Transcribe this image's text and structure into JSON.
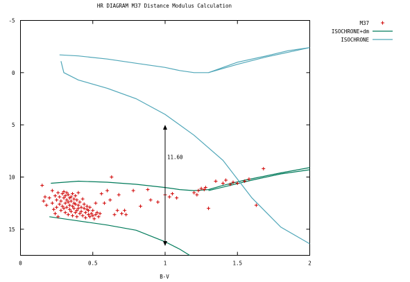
{
  "chart_data": {
    "type": "scatter",
    "title": "HR DIAGRAM M37 Distance Modulus Calculation",
    "xlabel": "B-V",
    "ylabel": "",
    "xlim": [
      0,
      2
    ],
    "ylim": [
      17.5,
      -5
    ],
    "y_inverted": true,
    "grid": false,
    "legend_position": "outside-right",
    "x_ticks": [
      "0",
      "0.5",
      "1",
      "1.5",
      "2"
    ],
    "x_tick_values": [
      0,
      0.5,
      1,
      1.5,
      2
    ],
    "y_ticks": [
      "-5",
      "0",
      "5",
      "10",
      "15"
    ],
    "y_tick_values": [
      -5,
      0,
      5,
      10,
      15
    ],
    "annotation": {
      "text": "11.60",
      "arrow_x": 1.0,
      "arrow_y_from": 5.0,
      "arrow_y_to": 16.6
    },
    "series": [
      {
        "name": "M37",
        "kind": "points",
        "marker": "plus",
        "color": "#d00000",
        "points": [
          [
            0.15,
            10.8
          ],
          [
            0.17,
            11.9
          ],
          [
            0.16,
            12.3
          ],
          [
            0.18,
            12.7
          ],
          [
            0.2,
            12.0
          ],
          [
            0.22,
            11.3
          ],
          [
            0.22,
            12.5
          ],
          [
            0.23,
            13.1
          ],
          [
            0.24,
            13.5
          ],
          [
            0.24,
            11.8
          ],
          [
            0.25,
            12.2
          ],
          [
            0.25,
            12.9
          ],
          [
            0.26,
            11.5
          ],
          [
            0.26,
            13.8
          ],
          [
            0.27,
            12.6
          ],
          [
            0.27,
            11.9
          ],
          [
            0.28,
            12.3
          ],
          [
            0.28,
            13.2
          ],
          [
            0.29,
            11.6
          ],
          [
            0.29,
            12.8
          ],
          [
            0.3,
            12.0
          ],
          [
            0.3,
            11.4
          ],
          [
            0.3,
            13.0
          ],
          [
            0.31,
            12.5
          ],
          [
            0.31,
            11.8
          ],
          [
            0.31,
            13.4
          ],
          [
            0.32,
            12.2
          ],
          [
            0.32,
            11.5
          ],
          [
            0.32,
            12.9
          ],
          [
            0.33,
            13.6
          ],
          [
            0.33,
            12.4
          ],
          [
            0.33,
            11.7
          ],
          [
            0.34,
            13.1
          ],
          [
            0.34,
            12.0
          ],
          [
            0.34,
            12.7
          ],
          [
            0.35,
            11.9
          ],
          [
            0.35,
            13.3
          ],
          [
            0.35,
            12.3
          ],
          [
            0.36,
            12.8
          ],
          [
            0.36,
            13.7
          ],
          [
            0.36,
            11.6
          ],
          [
            0.37,
            12.5
          ],
          [
            0.37,
            13.0
          ],
          [
            0.37,
            12.1
          ],
          [
            0.38,
            13.4
          ],
          [
            0.38,
            11.8
          ],
          [
            0.38,
            12.6
          ],
          [
            0.39,
            13.2
          ],
          [
            0.39,
            12.2
          ],
          [
            0.39,
            13.8
          ],
          [
            0.4,
            12.7
          ],
          [
            0.4,
            11.5
          ],
          [
            0.4,
            13.0
          ],
          [
            0.41,
            12.4
          ],
          [
            0.41,
            13.5
          ],
          [
            0.42,
            12.9
          ],
          [
            0.42,
            13.3
          ],
          [
            0.43,
            12.1
          ],
          [
            0.43,
            13.7
          ],
          [
            0.44,
            13.0
          ],
          [
            0.44,
            12.6
          ],
          [
            0.45,
            13.4
          ],
          [
            0.45,
            13.9
          ],
          [
            0.46,
            13.1
          ],
          [
            0.46,
            12.8
          ],
          [
            0.47,
            13.6
          ],
          [
            0.47,
            13.2
          ],
          [
            0.48,
            13.8
          ],
          [
            0.48,
            12.9
          ],
          [
            0.49,
            13.5
          ],
          [
            0.5,
            13.7
          ],
          [
            0.5,
            13.2
          ],
          [
            0.51,
            14.0
          ],
          [
            0.52,
            13.6
          ],
          [
            0.52,
            12.5
          ],
          [
            0.53,
            13.4
          ],
          [
            0.54,
            13.8
          ],
          [
            0.55,
            13.5
          ],
          [
            0.56,
            11.6
          ],
          [
            0.58,
            12.5
          ],
          [
            0.6,
            11.3
          ],
          [
            0.62,
            12.2
          ],
          [
            0.63,
            10.0
          ],
          [
            0.65,
            13.6
          ],
          [
            0.67,
            13.2
          ],
          [
            0.68,
            11.7
          ],
          [
            0.7,
            13.5
          ],
          [
            0.72,
            13.2
          ],
          [
            0.73,
            13.6
          ],
          [
            0.78,
            11.3
          ],
          [
            0.83,
            12.8
          ],
          [
            0.88,
            11.2
          ],
          [
            0.9,
            12.2
          ],
          [
            0.95,
            12.4
          ],
          [
            1.0,
            11.7
          ],
          [
            1.03,
            11.9
          ],
          [
            1.05,
            11.6
          ],
          [
            1.08,
            12.0
          ],
          [
            1.2,
            11.5
          ],
          [
            1.22,
            11.7
          ],
          [
            1.23,
            11.3
          ],
          [
            1.25,
            11.1
          ],
          [
            1.27,
            11.2
          ],
          [
            1.28,
            11.0
          ],
          [
            1.3,
            13.0
          ],
          [
            1.35,
            10.4
          ],
          [
            1.4,
            10.6
          ],
          [
            1.42,
            10.3
          ],
          [
            1.45,
            10.7
          ],
          [
            1.47,
            10.5
          ],
          [
            1.5,
            10.6
          ],
          [
            1.55,
            10.4
          ],
          [
            1.58,
            10.2
          ],
          [
            1.63,
            12.7
          ],
          [
            1.68,
            9.2
          ]
        ]
      },
      {
        "name": "ISOCHRONE+dm",
        "kind": "line",
        "color": "#007a5a",
        "segments": [
          [
            [
              0.21,
              10.6
            ],
            [
              0.4,
              10.4
            ],
            [
              0.6,
              10.5
            ],
            [
              0.8,
              10.7
            ],
            [
              1.0,
              11.0
            ],
            [
              1.1,
              11.2
            ],
            [
              1.2,
              11.3
            ],
            [
              1.3,
              11.2
            ],
            [
              1.4,
              10.8
            ],
            [
              1.55,
              10.3
            ],
            [
              1.8,
              9.6
            ],
            [
              2.0,
              9.1
            ]
          ],
          [
            [
              1.3,
              11.3
            ],
            [
              1.45,
              10.8
            ],
            [
              1.6,
              10.3
            ],
            [
              1.8,
              9.7
            ],
            [
              2.0,
              9.3
            ]
          ],
          [
            [
              0.2,
              13.8
            ],
            [
              0.4,
              14.2
            ],
            [
              0.6,
              14.6
            ],
            [
              0.8,
              15.1
            ],
            [
              1.0,
              16.2
            ],
            [
              1.1,
              16.9
            ],
            [
              1.17,
              17.5
            ]
          ]
        ]
      },
      {
        "name": "ISOCHRONE",
        "kind": "line",
        "color": "#4fa6b8",
        "segments": [
          [
            [
              0.27,
              -1.7
            ],
            [
              0.4,
              -1.6
            ],
            [
              0.6,
              -1.3
            ],
            [
              0.8,
              -0.9
            ],
            [
              1.0,
              -0.5
            ],
            [
              1.1,
              -0.2
            ],
            [
              1.2,
              0.0
            ],
            [
              1.3,
              0.0
            ],
            [
              1.5,
              -1.0
            ],
            [
              1.7,
              -1.6
            ],
            [
              1.85,
              -2.1
            ],
            [
              2.0,
              -2.4
            ]
          ],
          [
            [
              0.28,
              -1.1
            ],
            [
              0.3,
              0.0
            ],
            [
              0.4,
              0.7
            ],
            [
              0.6,
              1.5
            ],
            [
              0.8,
              2.5
            ],
            [
              1.0,
              4.0
            ],
            [
              1.2,
              6.0
            ],
            [
              1.4,
              8.4
            ],
            [
              1.6,
              12.0
            ],
            [
              1.8,
              14.8
            ],
            [
              2.0,
              16.4
            ]
          ],
          [
            [
              1.3,
              0.0
            ],
            [
              1.5,
              -0.8
            ],
            [
              1.7,
              -1.5
            ],
            [
              1.9,
              -2.1
            ],
            [
              2.0,
              -2.4
            ]
          ]
        ]
      }
    ]
  }
}
